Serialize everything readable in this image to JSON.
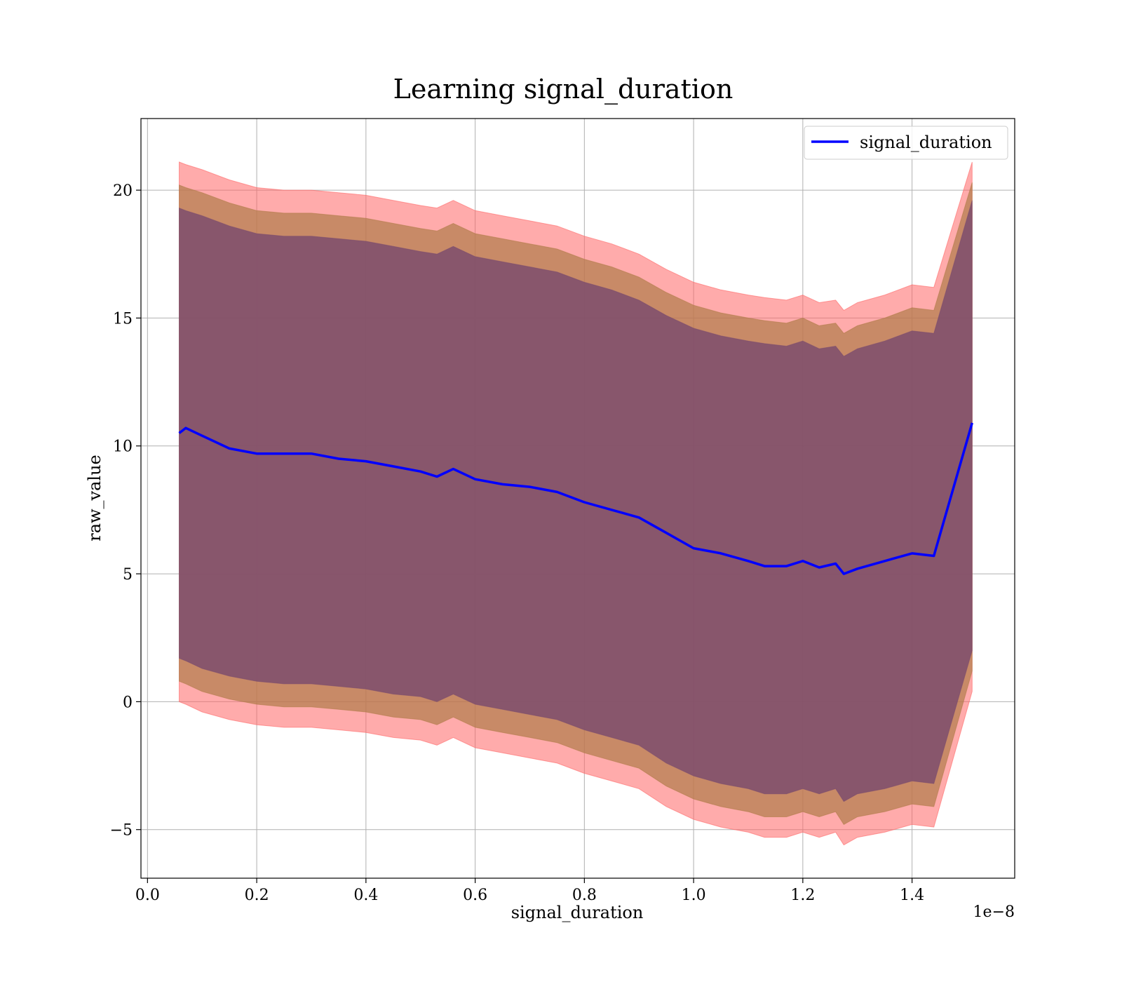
{
  "chart_data": {
    "type": "area",
    "title": "Learning signal_duration",
    "xlabel": "signal_duration",
    "ylabel": "raw_value",
    "x_offset_text": "1e−8",
    "xlim": [
      -0.012,
      1.588
    ],
    "ylim": [
      -6.9,
      22.8
    ],
    "x_ticks": [
      0.0,
      0.2,
      0.4,
      0.6,
      0.8,
      1.0,
      1.2,
      1.4
    ],
    "x_tick_labels": [
      "0.0",
      "0.2",
      "0.4",
      "0.6",
      "0.8",
      "1.0",
      "1.2",
      "1.4"
    ],
    "y_ticks": [
      -5,
      0,
      5,
      10,
      15,
      20
    ],
    "y_tick_labels": [
      "−5",
      "0",
      "5",
      "10",
      "15",
      "20"
    ],
    "grid": true,
    "legend": {
      "position": "top-right",
      "entries": [
        "signal_duration"
      ]
    },
    "colors": {
      "line": "#0000ff",
      "band_outer": "#ff6666",
      "band_middle": "#b07c4a",
      "band_inner": "#7a4b6e"
    },
    "x": [
      0.058,
      0.07,
      0.1,
      0.15,
      0.2,
      0.25,
      0.3,
      0.35,
      0.4,
      0.45,
      0.5,
      0.53,
      0.56,
      0.6,
      0.65,
      0.7,
      0.75,
      0.8,
      0.85,
      0.9,
      0.95,
      1.0,
      1.05,
      1.1,
      1.13,
      1.17,
      1.2,
      1.23,
      1.26,
      1.275,
      1.3,
      1.35,
      1.4,
      1.44,
      1.51
    ],
    "series": [
      {
        "name": "signal_duration",
        "values": [
          10.5,
          10.7,
          10.4,
          9.9,
          9.7,
          9.7,
          9.7,
          9.5,
          9.4,
          9.2,
          9.0,
          8.8,
          9.1,
          8.7,
          8.5,
          8.4,
          8.2,
          7.8,
          7.5,
          7.2,
          6.6,
          6.0,
          5.8,
          5.5,
          5.3,
          5.3,
          5.5,
          5.25,
          5.4,
          5.0,
          5.2,
          5.5,
          5.8,
          5.7,
          10.9
        ]
      }
    ],
    "bands": [
      {
        "upper": [
          21.1,
          21.0,
          20.8,
          20.4,
          20.1,
          20.0,
          20.0,
          19.9,
          19.8,
          19.6,
          19.4,
          19.3,
          19.6,
          19.2,
          19.0,
          18.8,
          18.6,
          18.2,
          17.9,
          17.5,
          16.9,
          16.4,
          16.1,
          15.9,
          15.8,
          15.7,
          15.9,
          15.6,
          15.7,
          15.3,
          15.6,
          15.9,
          16.3,
          16.2,
          21.1
        ],
        "lower": [
          0.0,
          -0.1,
          -0.4,
          -0.7,
          -0.9,
          -1.0,
          -1.0,
          -1.1,
          -1.2,
          -1.4,
          -1.5,
          -1.7,
          -1.4,
          -1.8,
          -2.0,
          -2.2,
          -2.4,
          -2.8,
          -3.1,
          -3.4,
          -4.1,
          -4.6,
          -4.9,
          -5.1,
          -5.3,
          -5.3,
          -5.1,
          -5.3,
          -5.1,
          -5.6,
          -5.3,
          -5.1,
          -4.8,
          -4.9,
          0.4
        ]
      },
      {
        "upper": [
          20.2,
          20.1,
          19.9,
          19.5,
          19.2,
          19.1,
          19.1,
          19.0,
          18.9,
          18.7,
          18.5,
          18.4,
          18.7,
          18.3,
          18.1,
          17.9,
          17.7,
          17.3,
          17.0,
          16.6,
          16.0,
          15.5,
          15.2,
          15.0,
          14.9,
          14.8,
          15.0,
          14.7,
          14.8,
          14.4,
          14.7,
          15.0,
          15.4,
          15.3,
          20.3
        ],
        "lower": [
          0.8,
          0.7,
          0.4,
          0.1,
          -0.1,
          -0.2,
          -0.2,
          -0.3,
          -0.4,
          -0.6,
          -0.7,
          -0.9,
          -0.6,
          -1.0,
          -1.2,
          -1.4,
          -1.6,
          -2.0,
          -2.3,
          -2.6,
          -3.3,
          -3.8,
          -4.1,
          -4.3,
          -4.5,
          -4.5,
          -4.3,
          -4.5,
          -4.3,
          -4.8,
          -4.5,
          -4.3,
          -4.0,
          -4.1,
          1.2
        ]
      },
      {
        "upper": [
          19.3,
          19.2,
          19.0,
          18.6,
          18.3,
          18.2,
          18.2,
          18.1,
          18.0,
          17.8,
          17.6,
          17.5,
          17.8,
          17.4,
          17.2,
          17.0,
          16.8,
          16.4,
          16.1,
          15.7,
          15.1,
          14.6,
          14.3,
          14.1,
          14.0,
          13.9,
          14.1,
          13.8,
          13.9,
          13.5,
          13.8,
          14.1,
          14.5,
          14.4,
          19.6
        ],
        "lower": [
          1.7,
          1.6,
          1.3,
          1.0,
          0.8,
          0.7,
          0.7,
          0.6,
          0.5,
          0.3,
          0.2,
          0.0,
          0.3,
          -0.1,
          -0.3,
          -0.5,
          -0.7,
          -1.1,
          -1.4,
          -1.7,
          -2.4,
          -2.9,
          -3.2,
          -3.4,
          -3.6,
          -3.6,
          -3.4,
          -3.6,
          -3.4,
          -3.9,
          -3.6,
          -3.4,
          -3.1,
          -3.2,
          2.0
        ]
      }
    ]
  }
}
